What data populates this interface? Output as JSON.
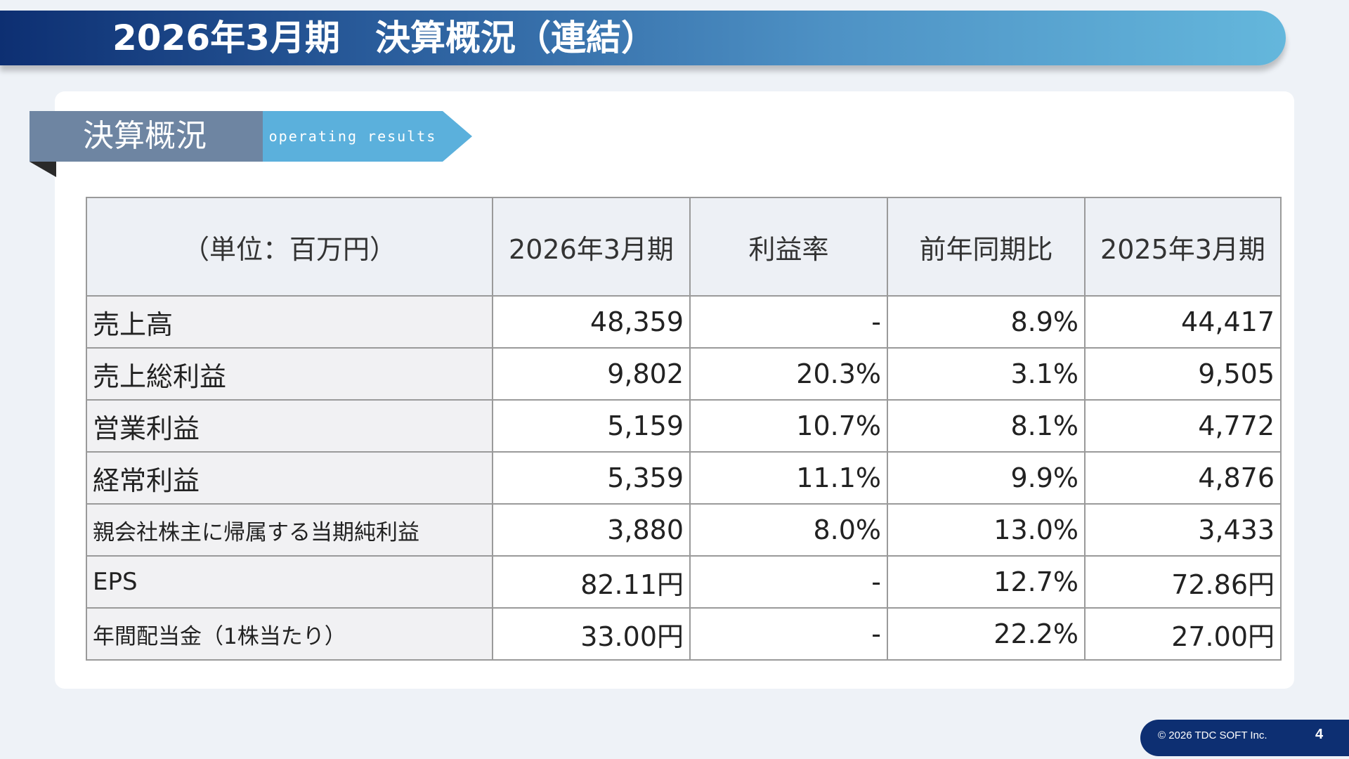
{
  "title": "2026年3月期　決算概況（連結）",
  "section": {
    "label": "決算概況",
    "sublabel": "operating results"
  },
  "table": {
    "headers": [
      "（単位：百万円）",
      "2026年3月期",
      "利益率",
      "前年同期比",
      "2025年3月期"
    ],
    "rows": [
      [
        "売上高",
        "48,359",
        "-",
        "8.9%",
        "44,417"
      ],
      [
        "売上総利益",
        "9,802",
        "20.3%",
        "3.1%",
        "9,505"
      ],
      [
        "営業利益",
        "5,159",
        "10.7%",
        "8.1%",
        "4,772"
      ],
      [
        "経常利益",
        "5,359",
        "11.1%",
        "9.9%",
        "4,876"
      ],
      [
        "親会社株主に帰属する当期純利益",
        "3,880",
        "8.0%",
        "13.0%",
        "3,433"
      ],
      [
        "EPS",
        "82.11円",
        "-",
        "12.7%",
        "72.86円"
      ],
      [
        "年間配当金（1株当たり）",
        "33.00円",
        "-",
        "22.2%",
        "27.00円"
      ]
    ]
  },
  "footer": {
    "copyright": "© 2026 TDC SOFT Inc.",
    "page": "4"
  },
  "colors": {
    "title_start": "#0d2f72",
    "title_end": "#64b7dc",
    "section": "#6e85a2",
    "section_sub": "#5bb0dc"
  }
}
